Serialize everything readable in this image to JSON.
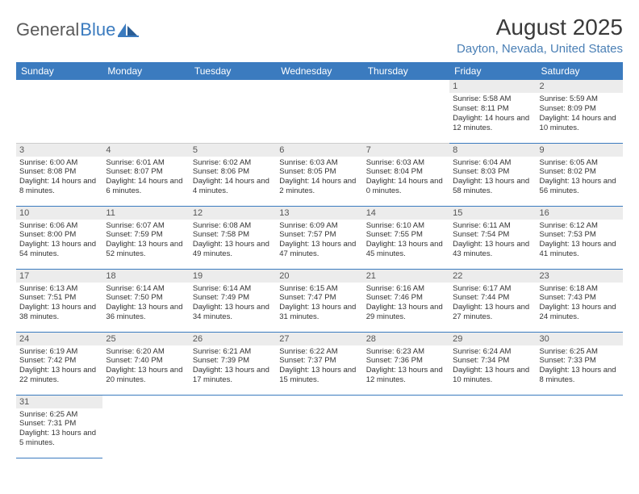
{
  "logo": {
    "text1": "General",
    "text2": "Blue"
  },
  "title": "August 2025",
  "location": "Dayton, Nevada, United States",
  "colors": {
    "header_bg": "#3b7bbf",
    "header_fg": "#ffffff",
    "row_divider": "#3b7bbf",
    "daynum_bg": "#ececec",
    "logo_gray": "#5a5a5a",
    "logo_blue": "#3b7bbf",
    "location_color": "#4a7fb5",
    "body_text": "#333333"
  },
  "typography": {
    "title_fontsize": 28,
    "location_fontsize": 15,
    "header_fontsize": 12,
    "daynum_fontsize": 11,
    "cell_fontsize": 9.5
  },
  "columns": [
    "Sunday",
    "Monday",
    "Tuesday",
    "Wednesday",
    "Thursday",
    "Friday",
    "Saturday"
  ],
  "weeks": [
    [
      null,
      null,
      null,
      null,
      null,
      {
        "n": "1",
        "sunrise": "Sunrise: 5:58 AM",
        "sunset": "Sunset: 8:11 PM",
        "daylight": "Daylight: 14 hours and 12 minutes."
      },
      {
        "n": "2",
        "sunrise": "Sunrise: 5:59 AM",
        "sunset": "Sunset: 8:09 PM",
        "daylight": "Daylight: 14 hours and 10 minutes."
      }
    ],
    [
      {
        "n": "3",
        "sunrise": "Sunrise: 6:00 AM",
        "sunset": "Sunset: 8:08 PM",
        "daylight": "Daylight: 14 hours and 8 minutes."
      },
      {
        "n": "4",
        "sunrise": "Sunrise: 6:01 AM",
        "sunset": "Sunset: 8:07 PM",
        "daylight": "Daylight: 14 hours and 6 minutes."
      },
      {
        "n": "5",
        "sunrise": "Sunrise: 6:02 AM",
        "sunset": "Sunset: 8:06 PM",
        "daylight": "Daylight: 14 hours and 4 minutes."
      },
      {
        "n": "6",
        "sunrise": "Sunrise: 6:03 AM",
        "sunset": "Sunset: 8:05 PM",
        "daylight": "Daylight: 14 hours and 2 minutes."
      },
      {
        "n": "7",
        "sunrise": "Sunrise: 6:03 AM",
        "sunset": "Sunset: 8:04 PM",
        "daylight": "Daylight: 14 hours and 0 minutes."
      },
      {
        "n": "8",
        "sunrise": "Sunrise: 6:04 AM",
        "sunset": "Sunset: 8:03 PM",
        "daylight": "Daylight: 13 hours and 58 minutes."
      },
      {
        "n": "9",
        "sunrise": "Sunrise: 6:05 AM",
        "sunset": "Sunset: 8:02 PM",
        "daylight": "Daylight: 13 hours and 56 minutes."
      }
    ],
    [
      {
        "n": "10",
        "sunrise": "Sunrise: 6:06 AM",
        "sunset": "Sunset: 8:00 PM",
        "daylight": "Daylight: 13 hours and 54 minutes."
      },
      {
        "n": "11",
        "sunrise": "Sunrise: 6:07 AM",
        "sunset": "Sunset: 7:59 PM",
        "daylight": "Daylight: 13 hours and 52 minutes."
      },
      {
        "n": "12",
        "sunrise": "Sunrise: 6:08 AM",
        "sunset": "Sunset: 7:58 PM",
        "daylight": "Daylight: 13 hours and 49 minutes."
      },
      {
        "n": "13",
        "sunrise": "Sunrise: 6:09 AM",
        "sunset": "Sunset: 7:57 PM",
        "daylight": "Daylight: 13 hours and 47 minutes."
      },
      {
        "n": "14",
        "sunrise": "Sunrise: 6:10 AM",
        "sunset": "Sunset: 7:55 PM",
        "daylight": "Daylight: 13 hours and 45 minutes."
      },
      {
        "n": "15",
        "sunrise": "Sunrise: 6:11 AM",
        "sunset": "Sunset: 7:54 PM",
        "daylight": "Daylight: 13 hours and 43 minutes."
      },
      {
        "n": "16",
        "sunrise": "Sunrise: 6:12 AM",
        "sunset": "Sunset: 7:53 PM",
        "daylight": "Daylight: 13 hours and 41 minutes."
      }
    ],
    [
      {
        "n": "17",
        "sunrise": "Sunrise: 6:13 AM",
        "sunset": "Sunset: 7:51 PM",
        "daylight": "Daylight: 13 hours and 38 minutes."
      },
      {
        "n": "18",
        "sunrise": "Sunrise: 6:14 AM",
        "sunset": "Sunset: 7:50 PM",
        "daylight": "Daylight: 13 hours and 36 minutes."
      },
      {
        "n": "19",
        "sunrise": "Sunrise: 6:14 AM",
        "sunset": "Sunset: 7:49 PM",
        "daylight": "Daylight: 13 hours and 34 minutes."
      },
      {
        "n": "20",
        "sunrise": "Sunrise: 6:15 AM",
        "sunset": "Sunset: 7:47 PM",
        "daylight": "Daylight: 13 hours and 31 minutes."
      },
      {
        "n": "21",
        "sunrise": "Sunrise: 6:16 AM",
        "sunset": "Sunset: 7:46 PM",
        "daylight": "Daylight: 13 hours and 29 minutes."
      },
      {
        "n": "22",
        "sunrise": "Sunrise: 6:17 AM",
        "sunset": "Sunset: 7:44 PM",
        "daylight": "Daylight: 13 hours and 27 minutes."
      },
      {
        "n": "23",
        "sunrise": "Sunrise: 6:18 AM",
        "sunset": "Sunset: 7:43 PM",
        "daylight": "Daylight: 13 hours and 24 minutes."
      }
    ],
    [
      {
        "n": "24",
        "sunrise": "Sunrise: 6:19 AM",
        "sunset": "Sunset: 7:42 PM",
        "daylight": "Daylight: 13 hours and 22 minutes."
      },
      {
        "n": "25",
        "sunrise": "Sunrise: 6:20 AM",
        "sunset": "Sunset: 7:40 PM",
        "daylight": "Daylight: 13 hours and 20 minutes."
      },
      {
        "n": "26",
        "sunrise": "Sunrise: 6:21 AM",
        "sunset": "Sunset: 7:39 PM",
        "daylight": "Daylight: 13 hours and 17 minutes."
      },
      {
        "n": "27",
        "sunrise": "Sunrise: 6:22 AM",
        "sunset": "Sunset: 7:37 PM",
        "daylight": "Daylight: 13 hours and 15 minutes."
      },
      {
        "n": "28",
        "sunrise": "Sunrise: 6:23 AM",
        "sunset": "Sunset: 7:36 PM",
        "daylight": "Daylight: 13 hours and 12 minutes."
      },
      {
        "n": "29",
        "sunrise": "Sunrise: 6:24 AM",
        "sunset": "Sunset: 7:34 PM",
        "daylight": "Daylight: 13 hours and 10 minutes."
      },
      {
        "n": "30",
        "sunrise": "Sunrise: 6:25 AM",
        "sunset": "Sunset: 7:33 PM",
        "daylight": "Daylight: 13 hours and 8 minutes."
      }
    ],
    [
      {
        "n": "31",
        "sunrise": "Sunrise: 6:25 AM",
        "sunset": "Sunset: 7:31 PM",
        "daylight": "Daylight: 13 hours and 5 minutes."
      },
      null,
      null,
      null,
      null,
      null,
      null
    ]
  ]
}
